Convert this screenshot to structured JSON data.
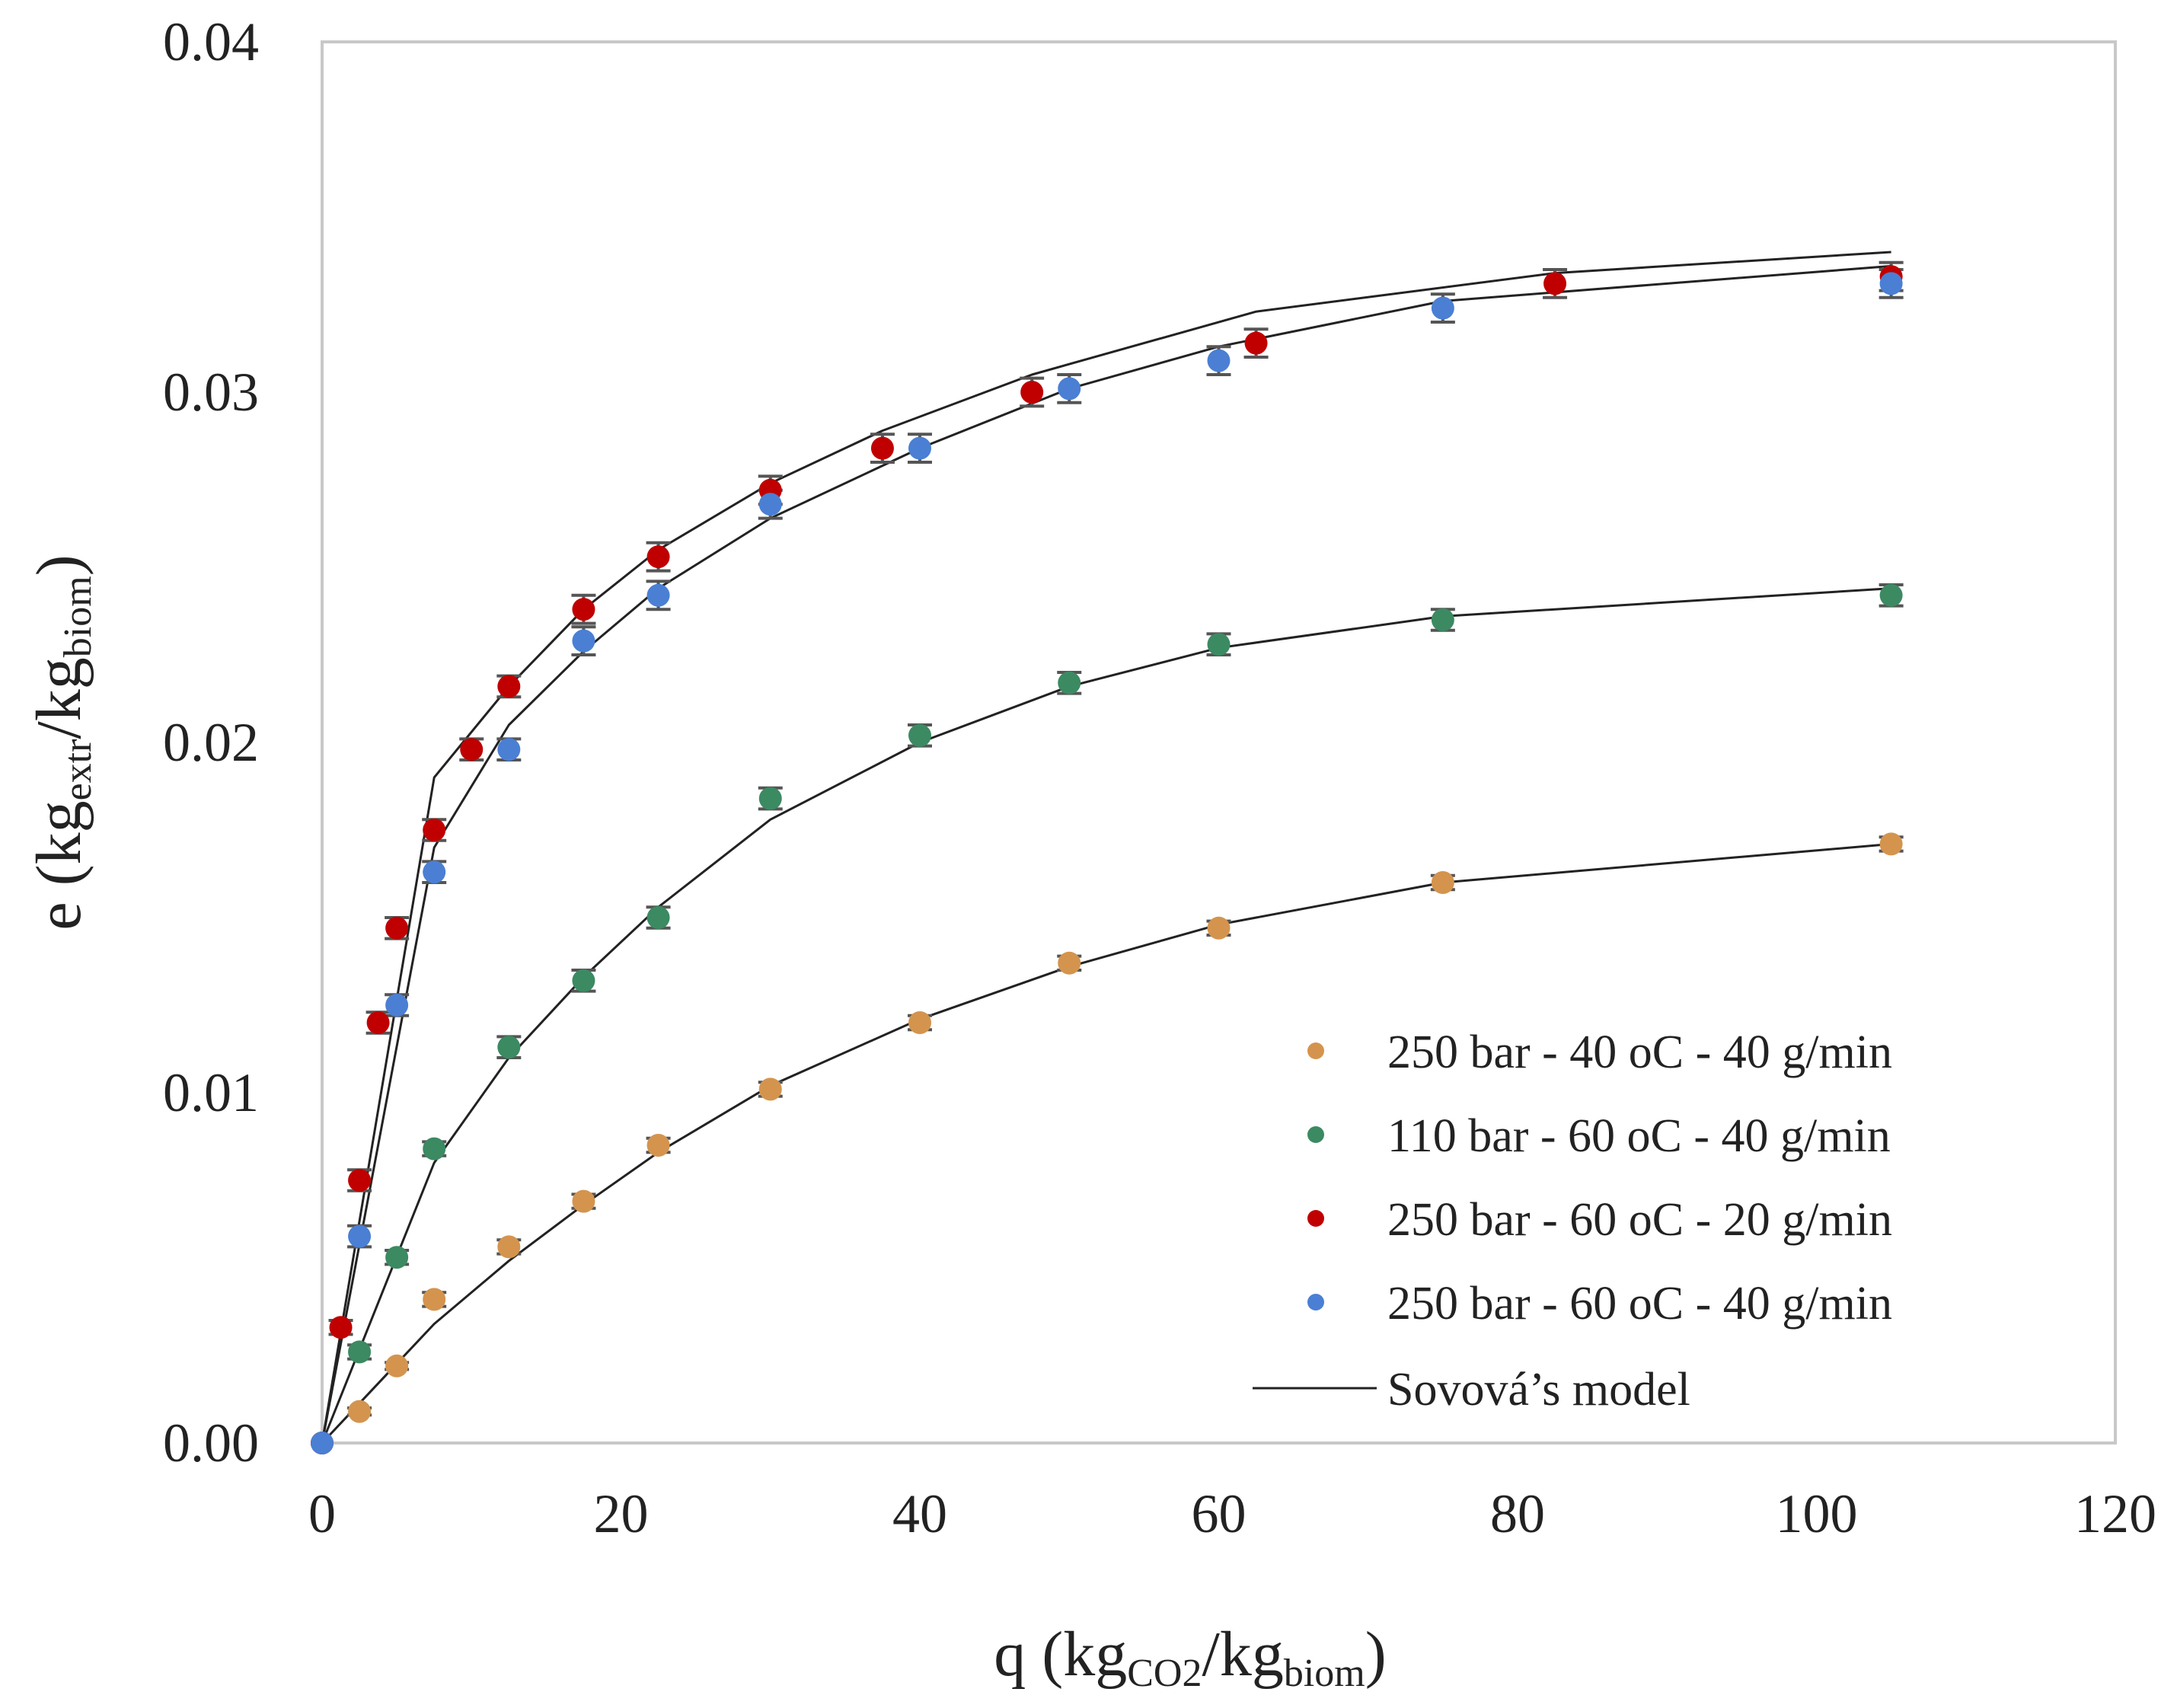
{
  "chart_data": {
    "type": "scatter",
    "title": "",
    "xlabel": {
      "prefix": "q (kg",
      "sub1": "CO2",
      "mid": "/kg",
      "sub2": "biom",
      "suffix": ")"
    },
    "ylabel": {
      "prefix": "e (kg",
      "sub1": "extr",
      "mid": "/kg",
      "sub2": "biom",
      "suffix": ")"
    },
    "xlim": [
      0,
      120
    ],
    "ylim": [
      0,
      0.04
    ],
    "x_ticks": [
      0,
      20,
      40,
      60,
      80,
      100,
      120
    ],
    "x_tick_labels": [
      "0",
      "20",
      "40",
      "60",
      "80",
      "100",
      "120"
    ],
    "y_ticks": [
      0,
      0.01,
      0.02,
      0.03,
      0.04
    ],
    "y_tick_labels": [
      "0.00",
      "0.01",
      "0.02",
      "0.03",
      "0.04"
    ],
    "grid": false,
    "legend_position": "bottom-right",
    "model_label": "Sovová’s model",
    "model_color": "#222222",
    "errorbar_color": "#555555",
    "series": [
      {
        "name": "250 bar - 40 oC - 40 g/min",
        "color": "#d4944e",
        "x": [
          0,
          2.5,
          5,
          7.5,
          12.5,
          17.5,
          22.5,
          30,
          40,
          50,
          60,
          75,
          105
        ],
        "y": [
          0,
          0.0009,
          0.0022,
          0.0041,
          0.0056,
          0.0069,
          0.0085,
          0.0101,
          0.012,
          0.0137,
          0.0147,
          0.016,
          0.0171
        ],
        "err": [
          0,
          0.0001,
          0.0001,
          0.0002,
          0.0002,
          0.0002,
          0.0002,
          0.0002,
          0.0002,
          0.0002,
          0.0002,
          0.0002,
          0.0002
        ],
        "model_x": [
          0,
          7.5,
          12.5,
          17.5,
          22.5,
          30,
          40,
          50,
          60,
          75,
          105
        ],
        "model_y": [
          0,
          0.0034,
          0.0052,
          0.0068,
          0.0083,
          0.0102,
          0.0121,
          0.0136,
          0.0148,
          0.016,
          0.0171
        ]
      },
      {
        "name": "110 bar - 60 oC - 40 g/min",
        "color": "#3b8a62",
        "x": [
          0,
          2.5,
          5,
          7.5,
          12.5,
          17.5,
          22.5,
          30,
          40,
          50,
          60,
          75,
          105
        ],
        "y": [
          0,
          0.0026,
          0.0053,
          0.0084,
          0.0113,
          0.0132,
          0.015,
          0.0184,
          0.0202,
          0.0217,
          0.0228,
          0.0235,
          0.0242
        ],
        "err": [
          0,
          0.0002,
          0.0002,
          0.0002,
          0.0003,
          0.0003,
          0.0003,
          0.0003,
          0.0003,
          0.0003,
          0.0003,
          0.0003,
          0.0003
        ],
        "model_x": [
          0,
          7.5,
          12.5,
          17.5,
          22.5,
          30,
          40,
          50,
          60,
          75,
          105
        ],
        "model_y": [
          0,
          0.008,
          0.011,
          0.0133,
          0.0153,
          0.0178,
          0.02,
          0.0216,
          0.0227,
          0.0236,
          0.0244
        ]
      },
      {
        "name": "250 bar - 60 oC - 20 g/min",
        "color": "#c00000",
        "x": [
          0,
          1.25,
          2.5,
          3.75,
          5,
          7.5,
          10,
          12.5,
          17.5,
          22.5,
          30,
          37.5,
          47.5,
          62.5,
          82.5,
          105
        ],
        "y": [
          0,
          0.0033,
          0.0075,
          0.012,
          0.0147,
          0.0175,
          0.0198,
          0.0216,
          0.0238,
          0.0253,
          0.0272,
          0.0284,
          0.03,
          0.0314,
          0.0331,
          0.0333
        ],
        "err": [
          0,
          0.0002,
          0.0003,
          0.0003,
          0.0003,
          0.0003,
          0.0003,
          0.0003,
          0.0004,
          0.0004,
          0.0004,
          0.0004,
          0.0004,
          0.0004,
          0.0004,
          0.0004
        ],
        "model_x": [
          0,
          7.5,
          12.5,
          17.5,
          22.5,
          30,
          37.5,
          47.5,
          62.5,
          82.5,
          105
        ],
        "model_y": [
          0,
          0.019,
          0.0216,
          0.0238,
          0.0255,
          0.0274,
          0.0289,
          0.0305,
          0.0323,
          0.0334,
          0.034
        ]
      },
      {
        "name": "250 bar - 60 oC - 40 g/min",
        "color": "#4a7fd4",
        "x": [
          0,
          2.5,
          5,
          7.5,
          12.5,
          17.5,
          22.5,
          30,
          40,
          50,
          60,
          75,
          105
        ],
        "y": [
          0,
          0.0059,
          0.0125,
          0.0163,
          0.0198,
          0.0229,
          0.0242,
          0.0268,
          0.0284,
          0.0301,
          0.0309,
          0.0324,
          0.0331
        ],
        "err": [
          0,
          0.0003,
          0.0003,
          0.0003,
          0.0003,
          0.0004,
          0.0004,
          0.0004,
          0.0004,
          0.0004,
          0.0004,
          0.0004,
          0.0004
        ],
        "model_x": [
          0,
          7.5,
          12.5,
          17.5,
          22.5,
          30,
          40,
          50,
          60,
          75,
          105
        ],
        "model_y": [
          0,
          0.017,
          0.0205,
          0.0226,
          0.0244,
          0.0264,
          0.0284,
          0.0301,
          0.0313,
          0.0326,
          0.0336
        ]
      }
    ]
  }
}
